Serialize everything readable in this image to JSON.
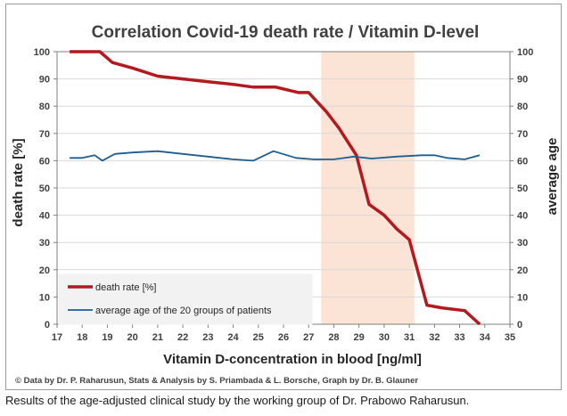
{
  "chart_data": {
    "type": "line",
    "title": "Correlation Covid-19 death rate / Vitamin D-level",
    "xlabel": "Vitamin D-concentration in blood [ng/ml]",
    "ylabel_left": "death rate [%]",
    "ylabel_right": "average age",
    "xlim": [
      17,
      35
    ],
    "ylim_left": [
      0,
      100
    ],
    "ylim_right": [
      0,
      100
    ],
    "x_ticks": [
      17,
      18,
      19,
      20,
      21,
      22,
      23,
      24,
      25,
      26,
      27,
      28,
      29,
      30,
      31,
      32,
      33,
      34,
      35
    ],
    "y_ticks": [
      0,
      10,
      20,
      30,
      40,
      50,
      60,
      70,
      80,
      90,
      100
    ],
    "highlight_range": {
      "x": [
        27.5,
        31.2
      ],
      "color": "#fbe3d6"
    },
    "grid": "horizontal",
    "legend_placement": "bottom-left",
    "series": [
      {
        "name": "death rate [%]",
        "axis": "left",
        "color": "#b3191e",
        "x": [
          17.5,
          18.7,
          19.2,
          20.0,
          21.0,
          22.0,
          23.0,
          24.0,
          24.8,
          25.7,
          26.6,
          27.0,
          27.7,
          28.2,
          28.9,
          29.4,
          30.0,
          30.5,
          31.0,
          31.7,
          32.3,
          33.2,
          33.8
        ],
        "values": [
          100,
          100,
          96,
          94,
          91,
          90,
          89,
          88,
          87,
          87,
          85,
          85,
          78,
          72,
          62,
          44,
          40,
          35,
          31,
          7,
          6,
          5,
          0
        ]
      },
      {
        "name": "average age of the 20 groups of patients",
        "axis": "right",
        "color": "#1f5c8f",
        "x": [
          17.5,
          18.0,
          18.5,
          18.8,
          19.3,
          20.0,
          21.0,
          22.0,
          23.0,
          24.0,
          24.8,
          25.6,
          26.5,
          27.2,
          28.0,
          28.8,
          29.5,
          30.5,
          31.5,
          32.0,
          32.5,
          33.2,
          33.8
        ],
        "values": [
          61,
          61,
          62,
          60,
          62.5,
          63,
          63.5,
          62.5,
          61.5,
          60.5,
          60,
          63.5,
          61,
          60.5,
          60.5,
          61.5,
          60.8,
          61.5,
          62,
          62,
          61,
          60.5,
          62
        ]
      }
    ],
    "credits": "© Data by Dr. P. Raharusun, Stats & Analysis by S. Priambada & L. Borsche, Graph by Dr. B. Glauner"
  },
  "caption": "Results of the age-adjusted clinical study by the working group of Dr. Prabowo Raharusun."
}
